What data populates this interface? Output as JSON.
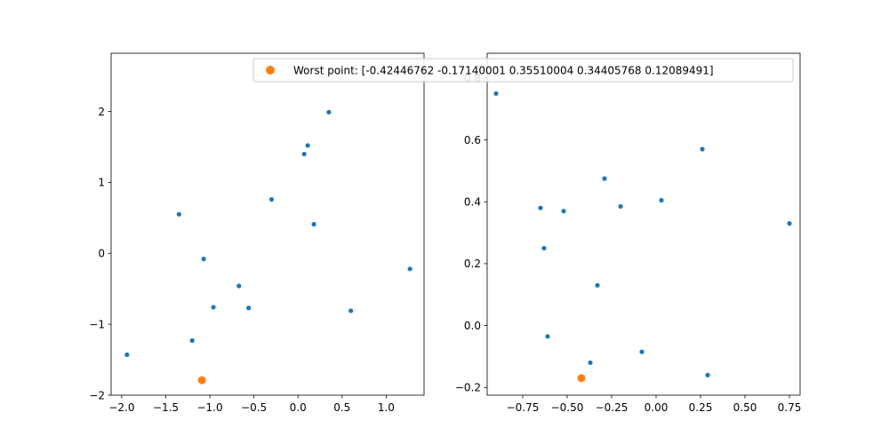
{
  "chart_data": [
    {
      "type": "scatter",
      "xlim": [
        -2.12,
        1.43
      ],
      "ylim": [
        -2.0,
        2.82
      ],
      "xticks": [
        -2.0,
        -1.5,
        -1.0,
        -0.5,
        0.0,
        0.5,
        1.0
      ],
      "xtick_labels": [
        "−2.0",
        "−1.5",
        "−1.0",
        "−0.5",
        "0.0",
        "0.5",
        "1.0"
      ],
      "yticks": [
        -2,
        -1,
        0,
        1,
        2
      ],
      "ytick_labels": [
        "−2",
        "−1",
        "0",
        "1",
        "2"
      ],
      "series": [
        {
          "color": "#1f77b4",
          "points": [
            [
              -1.94,
              -1.43
            ],
            [
              -1.35,
              0.55
            ],
            [
              -1.07,
              -0.08
            ],
            [
              -1.2,
              -1.23
            ],
            [
              -0.96,
              -0.76
            ],
            [
              -0.67,
              -0.46
            ],
            [
              -0.56,
              -0.77
            ],
            [
              -0.3,
              0.76
            ],
            [
              0.07,
              1.4
            ],
            [
              0.11,
              1.52
            ],
            [
              0.18,
              0.41
            ],
            [
              0.35,
              1.99
            ],
            [
              0.6,
              -0.81
            ],
            [
              1.27,
              -0.22
            ]
          ]
        },
        {
          "color": "#ff7f0e",
          "points": [
            [
              -1.09,
              -1.79
            ]
          ]
        }
      ]
    },
    {
      "type": "scatter",
      "xlim": [
        -0.95,
        0.81
      ],
      "ylim": [
        -0.225,
        0.88
      ],
      "xticks": [
        -0.75,
        -0.5,
        -0.25,
        0.0,
        0.25,
        0.5,
        0.75
      ],
      "xtick_labels": [
        "−0.75",
        "−0.50",
        "−0.25",
        "0.00",
        "0.25",
        "0.50",
        "0.75"
      ],
      "yticks": [
        -0.2,
        0.0,
        0.2,
        0.4,
        0.6,
        0.8
      ],
      "ytick_labels": [
        "−0.2",
        "0.0",
        "0.2",
        "0.4",
        "0.6",
        "0.8"
      ],
      "series": [
        {
          "color": "#1f77b4",
          "points": [
            [
              -0.9,
              0.75
            ],
            [
              -0.65,
              0.38
            ],
            [
              -0.63,
              0.25
            ],
            [
              -0.61,
              -0.035
            ],
            [
              -0.52,
              0.37
            ],
            [
              -0.37,
              -0.12
            ],
            [
              -0.33,
              0.13
            ],
            [
              -0.29,
              0.475
            ],
            [
              -0.2,
              0.385
            ],
            [
              -0.08,
              -0.085
            ],
            [
              0.03,
              0.405
            ],
            [
              0.26,
              0.57
            ],
            [
              0.29,
              -0.16
            ],
            [
              0.75,
              0.33
            ]
          ]
        },
        {
          "color": "#ff7f0e",
          "points": [
            [
              -0.42,
              -0.17
            ]
          ]
        }
      ]
    }
  ],
  "legend": {
    "label": "Worst point: [-0.42446762 -0.17140001  0.35510004  0.34405768  0.12089491]",
    "color": "#ff7f0e",
    "placement": "top-right"
  }
}
